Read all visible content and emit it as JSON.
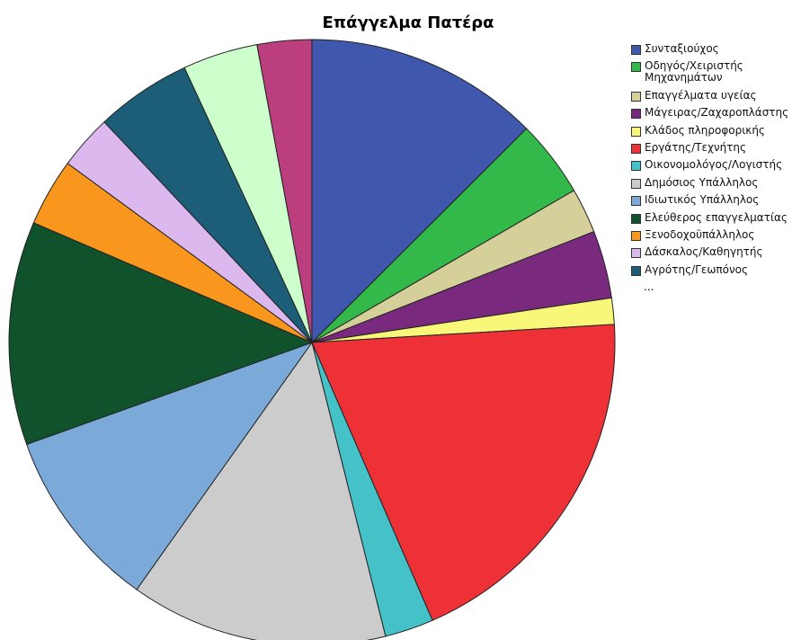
{
  "chart_data": {
    "type": "pie",
    "title": "Επάγγελμα Πατέρα",
    "categories": [
      "Συνταξιούχος",
      "Οδηγός/Χειριστής\nΜηχανημάτων",
      "Επαγγέλματα υγείας",
      "Μάγειρας/Ζαχαροπλάστης",
      "Κλάδος πληροφορικής",
      "Εργάτης/Τεχνήτης",
      "Οικονομολόγος/Λογιστής",
      "Δημόσιος Υπάλληλος",
      "Ιδιωτικός Υπάλληλος",
      "Ελεύθερος επαγγελματίας",
      "Ξενοδοχοϋπάλληλος",
      "Δάσκαλος/Καθηγητής",
      "Αγρότης/Γεωπόνος",
      null,
      null
    ],
    "values": [
      12.5,
      4.1,
      2.4,
      3.6,
      1.4,
      19.4,
      2.6,
      13.7,
      9.7,
      11.9,
      3.6,
      2.9,
      5.1,
      4.0,
      2.9
    ],
    "colors": [
      "#3f58ae",
      "#33b84a",
      "#d5d09a",
      "#7a2a7e",
      "#f8f77a",
      "#ee3137",
      "#45c1c8",
      "#cccccc",
      "#7ba9d8",
      "#0f522c",
      "#f8961d",
      "#dbb8ee",
      "#1c5e77",
      "#ccffcc",
      "#bb3f7f"
    ],
    "legend_more": "..."
  }
}
